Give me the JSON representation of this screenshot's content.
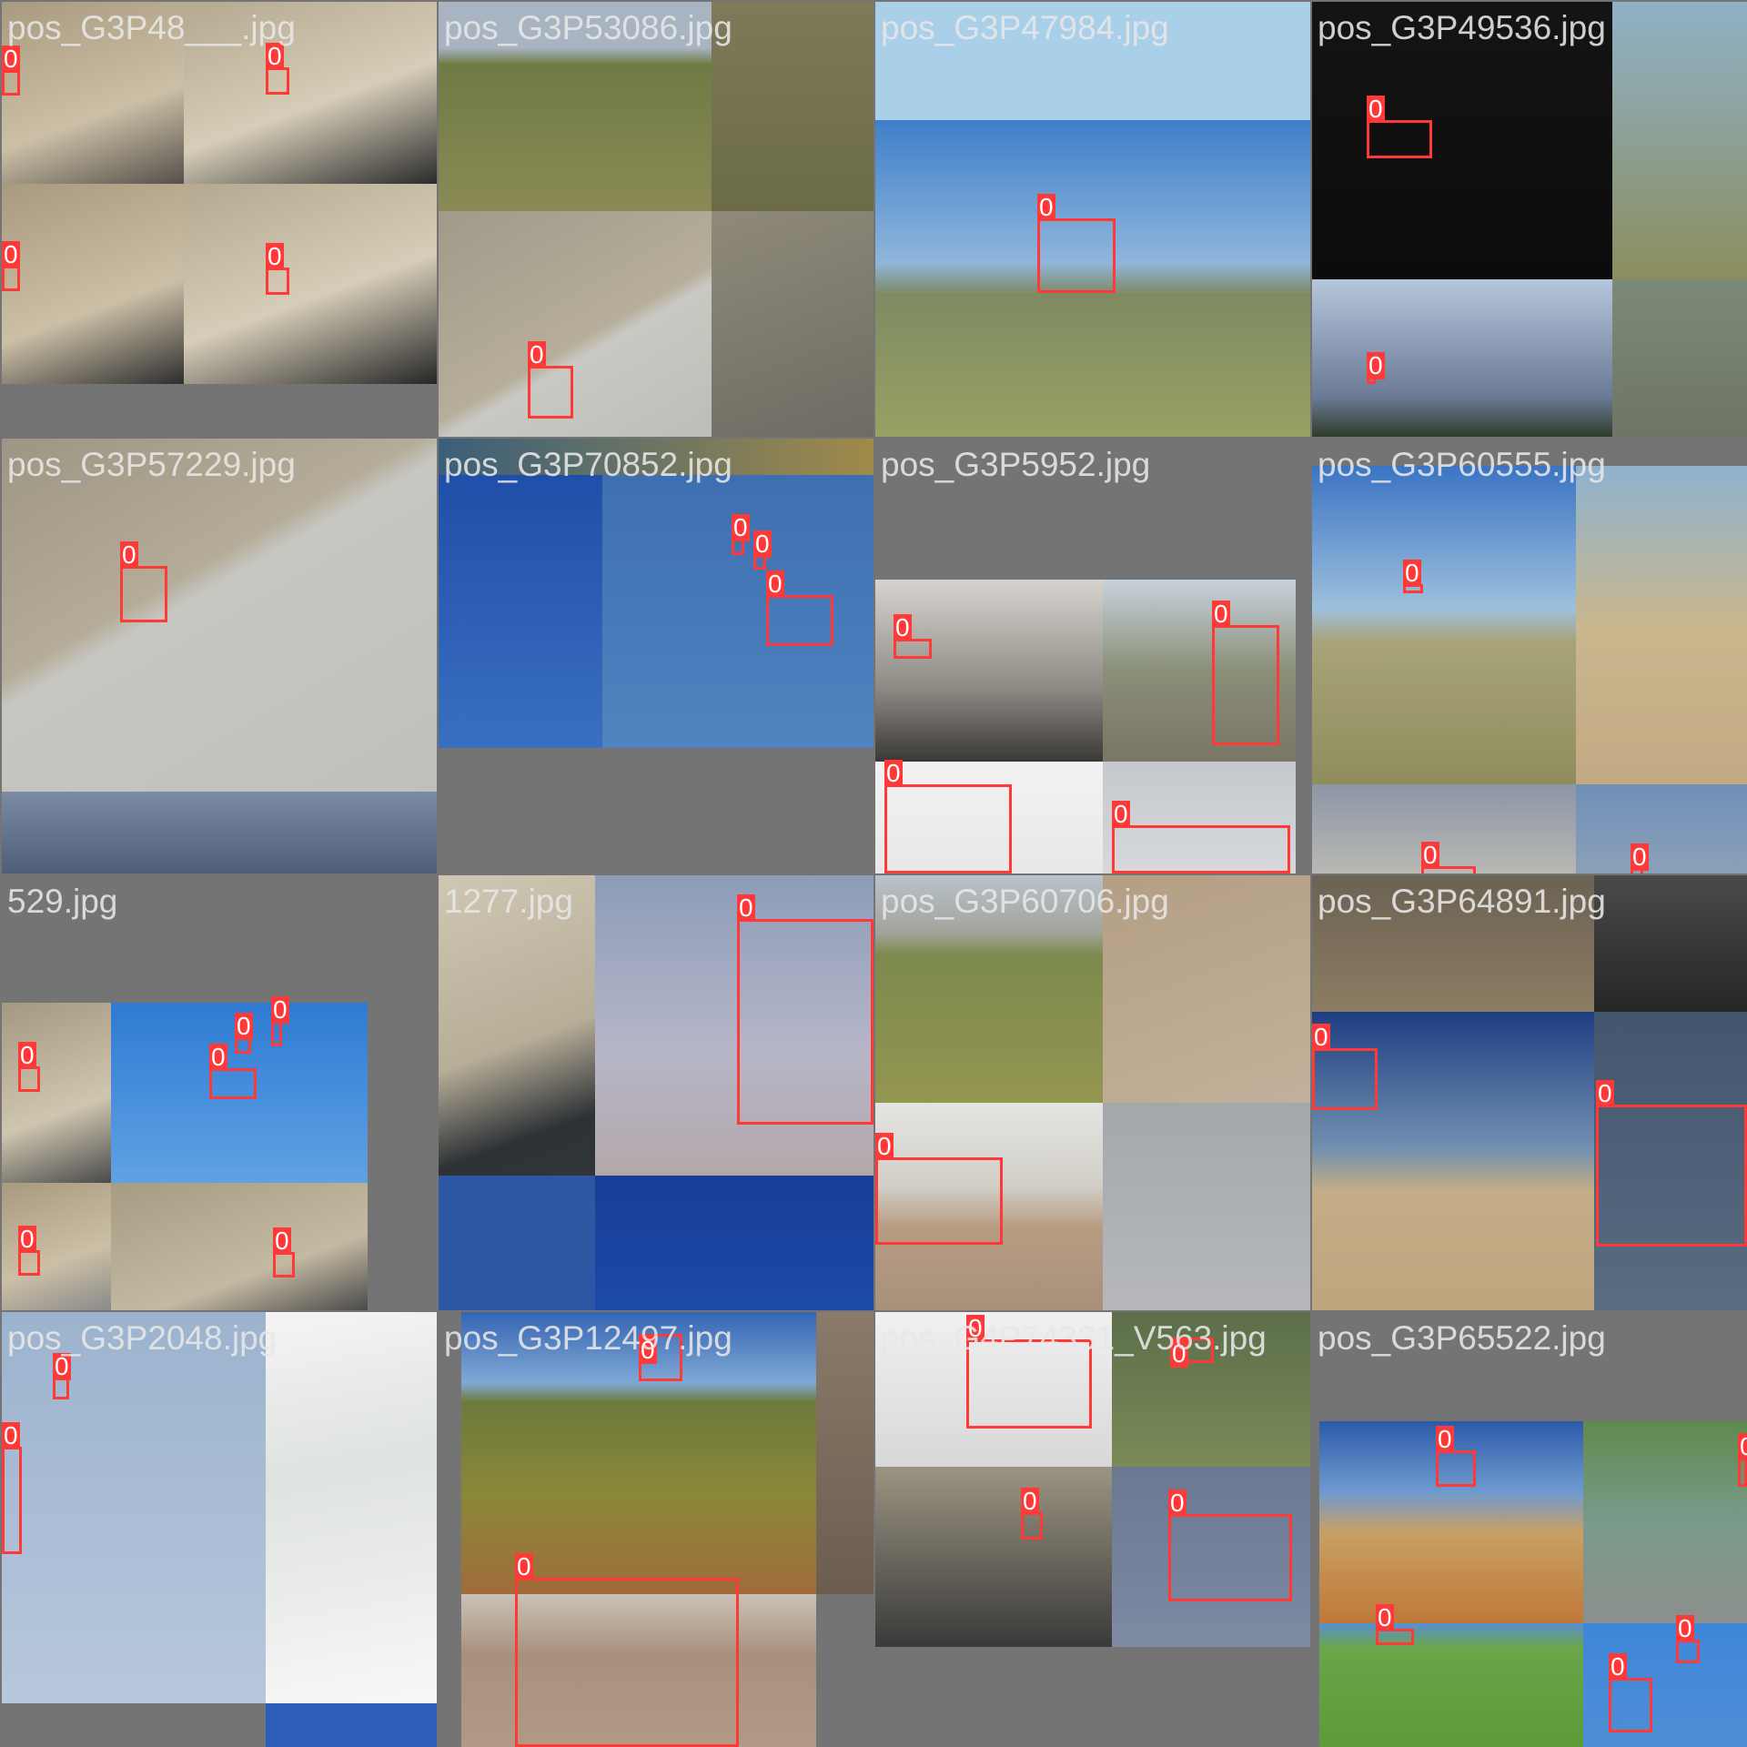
{
  "colors": {
    "background": "#747474",
    "box": "#ff3838",
    "label_text": "#ffffff",
    "title_text": "#e8e8e8"
  },
  "class_label": "0",
  "tiles": [
    {
      "title": "pos_G3P48___.jpg",
      "boxes": 4
    },
    {
      "title": "pos_G3P53086.jpg",
      "boxes": 1
    },
    {
      "title": "pos_G3P47984.jpg",
      "boxes": 1
    },
    {
      "title": "pos_G3P49536.jpg",
      "boxes": 2
    },
    {
      "title": "pos_G3P57229.jpg",
      "boxes": 1
    },
    {
      "title": "pos_G3P70852.jpg",
      "boxes": 3
    },
    {
      "title": "pos_G3P5952.jpg",
      "boxes": 4
    },
    {
      "title": "pos_G3P60555.jpg",
      "boxes": 3
    },
    {
      "title": "529.jpg",
      "boxes": 6
    },
    {
      "title": "1277.jpg",
      "boxes": 1
    },
    {
      "title": "pos_G3P60706.jpg",
      "boxes": 1
    },
    {
      "title": "pos_G3P64891.jpg",
      "boxes": 2
    },
    {
      "title": "pos_G3P2048.jpg",
      "boxes": 2
    },
    {
      "title": "pos_G3P12497.jpg",
      "boxes": 2
    },
    {
      "title": "pos_G4P74331_V563.jpg",
      "boxes": 4
    },
    {
      "title": "pos_G3P65522.jpg",
      "boxes": 5
    }
  ]
}
